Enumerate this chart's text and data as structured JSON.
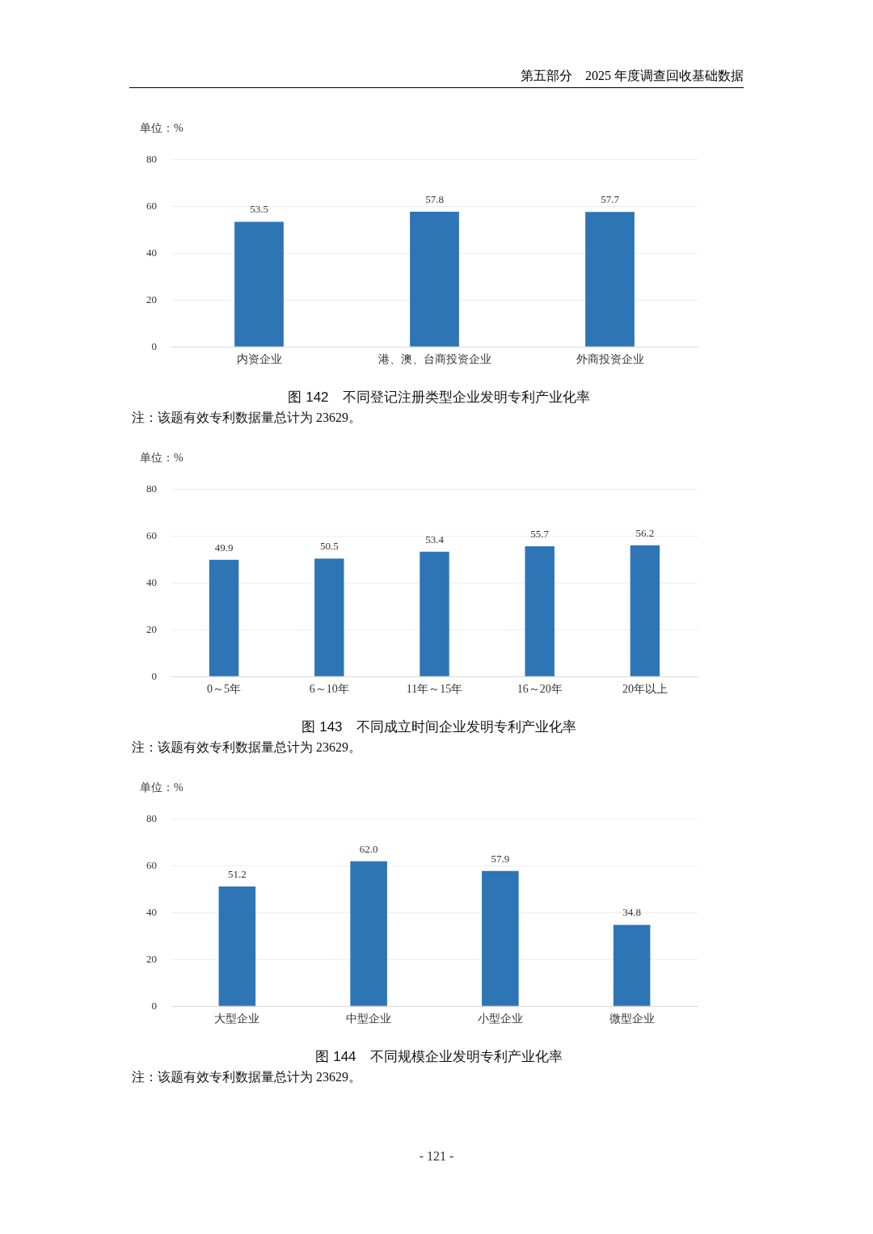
{
  "chart_data": [
    {
      "type": "bar",
      "title": "图 142　不同登记注册类型企业发明专利产业化率",
      "ylabel": "单位：%",
      "categories": [
        "内资企业",
        "港、澳、台商投资企业",
        "外商投资企业"
      ],
      "values": [
        53.5,
        57.8,
        57.7
      ],
      "value_labels": [
        "53.5",
        "57.8",
        "57.7"
      ],
      "color": "#2e75b6",
      "ylim": [
        0,
        80
      ],
      "yticks": [
        0,
        20,
        40,
        60,
        80
      ],
      "grid": "y",
      "annotations": [
        "第五部分　2025 年度调查回收基础数据",
        "注：该题有效专利数据量总计为 23629。"
      ]
    },
    {
      "type": "bar",
      "title": "图 143　不同成立时间企业发明专利产业化率",
      "ylabel": "单位：%",
      "categories": [
        "0～5年",
        "6～10年",
        "11年～15年",
        "16～20年",
        "20年以上"
      ],
      "values": [
        49.9,
        50.5,
        53.4,
        55.7,
        56.2
      ],
      "value_labels": [
        "49.9",
        "50.5",
        "53.4",
        "55.7",
        "56.2"
      ],
      "color": "#2e75b6",
      "ylim": [
        0,
        80
      ],
      "yticks": [
        0,
        20,
        40,
        60,
        80
      ],
      "grid": "y",
      "annotations": [
        "注：该题有效专利数据量总计为 23629。"
      ]
    },
    {
      "type": "bar",
      "title": "图 144　不同规模企业发明专利产业化率",
      "ylabel": "单位：%",
      "categories": [
        "大型企业",
        "中型企业",
        "小型企业",
        "微型企业"
      ],
      "values": [
        51.2,
        62.0,
        57.9,
        34.8
      ],
      "value_labels": [
        "51.2",
        "62.0",
        "57.9",
        "34.8"
      ],
      "color": "#2e75b6",
      "ylim": [
        0,
        80
      ],
      "yticks": [
        0,
        20,
        40,
        60,
        80
      ],
      "grid": "y",
      "annotations": [
        "注：该题有效专利数据量总计为 23629。",
        "- 121 -"
      ]
    }
  ]
}
